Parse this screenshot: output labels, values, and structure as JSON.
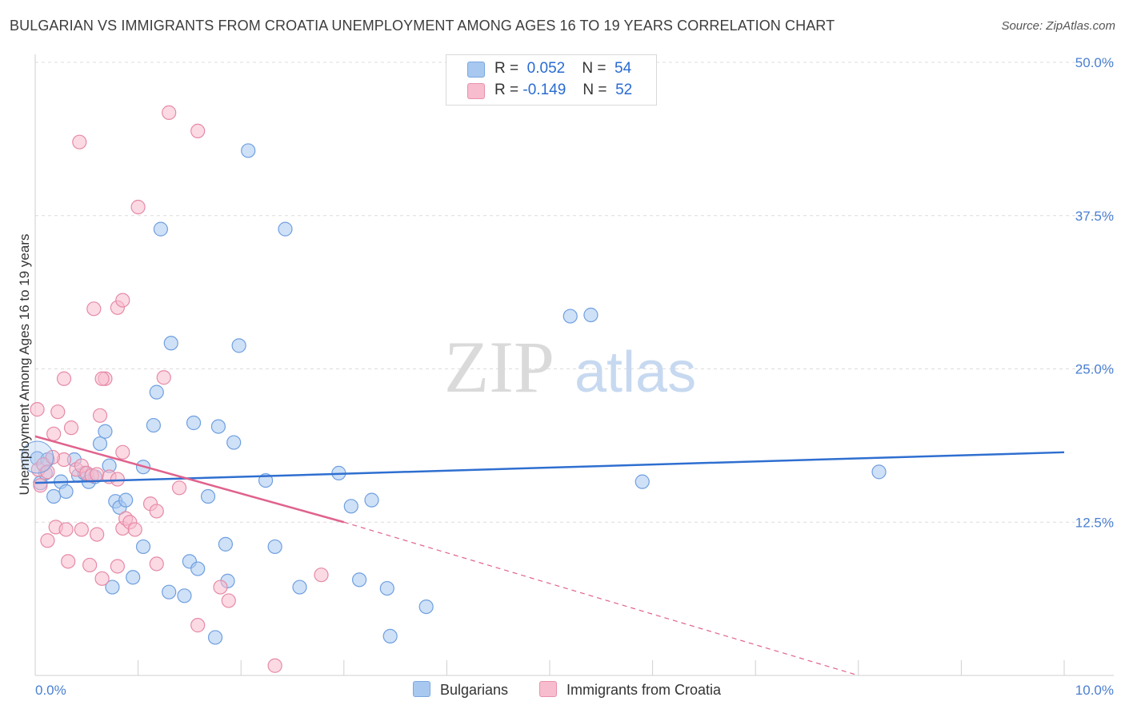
{
  "title": "BULGARIAN VS IMMIGRANTS FROM CROATIA UNEMPLOYMENT AMONG AGES 16 TO 19 YEARS CORRELATION CHART",
  "source": "Source: ZipAtlas.com",
  "watermark": {
    "zip": "ZIP",
    "atlas": "atlas"
  },
  "legend": {
    "rows": [
      {
        "r_label": "R =",
        "r_value": "0.052",
        "n_label": "N =",
        "n_value": "54",
        "color": "#a8c8f0",
        "border": "#7aa7e0"
      },
      {
        "r_label": "R =",
        "r_value": "-0.149",
        "n_label": "N =",
        "n_value": "52",
        "color": "#f7bccd",
        "border": "#e891ab"
      }
    ]
  },
  "bottom_legend": [
    {
      "label": "Bulgarians",
      "color": "#a8c8f0",
      "border": "#7aa7e0"
    },
    {
      "label": "Immigrants from Croatia",
      "color": "#f7bccd",
      "border": "#e891ab"
    }
  ],
  "chart_data": {
    "type": "scatter",
    "title": "BULGARIAN VS IMMIGRANTS FROM CROATIA UNEMPLOYMENT AMONG AGES 16 TO 19 YEARS CORRELATION CHART",
    "xlabel": "",
    "ylabel": "Unemployment Among Ages 16 to 19 years",
    "xlim": [
      0,
      10
    ],
    "ylim": [
      0,
      50
    ],
    "x_tick_labels": [
      "0.0%",
      "10.0%"
    ],
    "y_ticks": [
      12.5,
      25,
      37.5,
      50
    ],
    "y_tick_labels": [
      "12.5%",
      "25.0%",
      "37.5%",
      "50.0%"
    ],
    "series": [
      {
        "name": "Bulgarians",
        "color": "#a8c8f0",
        "stroke": "#6f9fe0",
        "line_color": "#2f6fd0",
        "trend": {
          "x0": 0,
          "y0": 15.7,
          "x1": 10,
          "y1": 18.2
        },
        "points": [
          [
            0.02,
            17.7
          ],
          [
            0.05,
            15.7
          ],
          [
            0.12,
            17.6
          ],
          [
            0.18,
            14.6
          ],
          [
            0.25,
            15.8
          ],
          [
            0.3,
            15.0
          ],
          [
            0.38,
            17.6
          ],
          [
            0.42,
            16.3
          ],
          [
            0.48,
            16.5
          ],
          [
            0.52,
            15.8
          ],
          [
            0.58,
            16.2
          ],
          [
            0.63,
            18.9
          ],
          [
            0.68,
            19.9
          ],
          [
            0.72,
            17.1
          ],
          [
            0.78,
            14.2
          ],
          [
            0.82,
            13.7
          ],
          [
            0.88,
            14.3
          ],
          [
            1.05,
            17.0
          ],
          [
            1.15,
            20.4
          ],
          [
            1.18,
            23.1
          ],
          [
            1.22,
            36.4
          ],
          [
            1.32,
            27.1
          ],
          [
            1.54,
            20.6
          ],
          [
            1.78,
            20.3
          ],
          [
            1.93,
            19.0
          ],
          [
            1.98,
            26.9
          ],
          [
            2.07,
            42.8
          ],
          [
            2.24,
            15.9
          ],
          [
            2.43,
            36.4
          ],
          [
            2.95,
            16.5
          ],
          [
            3.07,
            13.8
          ],
          [
            3.27,
            14.3
          ],
          [
            5.2,
            29.3
          ],
          [
            5.4,
            29.4
          ],
          [
            5.9,
            15.8
          ],
          [
            8.2,
            16.6
          ],
          [
            1.05,
            10.5
          ],
          [
            0.95,
            8.0
          ],
          [
            1.3,
            6.8
          ],
          [
            1.45,
            6.5
          ],
          [
            1.5,
            9.3
          ],
          [
            1.58,
            8.7
          ],
          [
            1.68,
            14.6
          ],
          [
            1.75,
            3.1
          ],
          [
            1.85,
            10.7
          ],
          [
            1.87,
            7.7
          ],
          [
            2.33,
            10.5
          ],
          [
            2.57,
            7.2
          ],
          [
            3.15,
            7.8
          ],
          [
            3.42,
            7.1
          ],
          [
            3.45,
            3.2
          ],
          [
            3.8,
            5.6
          ],
          [
            0.75,
            7.2
          ],
          [
            0.1,
            16.5
          ]
        ]
      },
      {
        "name": "Immigrants from Croatia",
        "color": "#f7bccd",
        "stroke": "#e68aa6",
        "line_color": "#e0628d",
        "trend": {
          "x0": 0,
          "y0": 19.5,
          "x1": 3.0,
          "y1": 12.5,
          "dash_x1": 8.0,
          "dash_y1": 0.0
        },
        "points": [
          [
            0.02,
            21.7
          ],
          [
            0.03,
            16.8
          ],
          [
            0.05,
            15.5
          ],
          [
            0.08,
            17.2
          ],
          [
            0.12,
            16.6
          ],
          [
            0.18,
            19.7
          ],
          [
            0.22,
            21.5
          ],
          [
            0.28,
            17.6
          ],
          [
            0.35,
            20.2
          ],
          [
            0.4,
            16.8
          ],
          [
            0.45,
            17.1
          ],
          [
            0.5,
            16.5
          ],
          [
            0.55,
            16.3
          ],
          [
            0.6,
            16.4
          ],
          [
            0.63,
            21.2
          ],
          [
            0.68,
            24.2
          ],
          [
            0.72,
            16.2
          ],
          [
            0.8,
            16.0
          ],
          [
            0.85,
            18.2
          ],
          [
            0.85,
            12.0
          ],
          [
            0.88,
            12.8
          ],
          [
            0.92,
            12.5
          ],
          [
            0.97,
            11.9
          ],
          [
            1.12,
            14.0
          ],
          [
            1.18,
            13.4
          ],
          [
            1.25,
            24.3
          ],
          [
            1.4,
            15.3
          ],
          [
            1.58,
            44.4
          ],
          [
            0.28,
            24.2
          ],
          [
            0.43,
            43.5
          ],
          [
            1.0,
            38.2
          ],
          [
            1.3,
            45.9
          ],
          [
            0.57,
            29.9
          ],
          [
            0.8,
            30.0
          ],
          [
            0.85,
            30.6
          ],
          [
            0.65,
            24.2
          ],
          [
            0.2,
            12.1
          ],
          [
            0.3,
            11.9
          ],
          [
            0.45,
            11.9
          ],
          [
            0.6,
            11.5
          ],
          [
            0.32,
            9.3
          ],
          [
            0.53,
            9.0
          ],
          [
            0.65,
            7.9
          ],
          [
            0.8,
            8.9
          ],
          [
            1.18,
            9.1
          ],
          [
            1.8,
            7.2
          ],
          [
            1.88,
            6.1
          ],
          [
            1.58,
            4.1
          ],
          [
            2.33,
            0.8
          ],
          [
            2.78,
            8.2
          ],
          [
            0.12,
            11.0
          ],
          [
            0.17,
            17.8
          ]
        ]
      }
    ]
  }
}
